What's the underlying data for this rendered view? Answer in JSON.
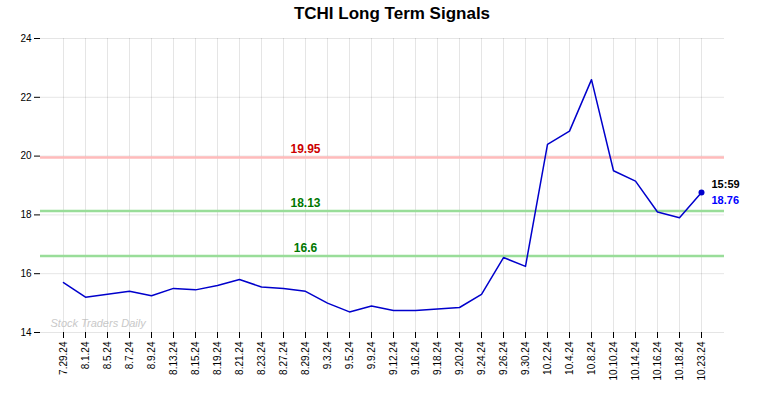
{
  "chart_data": {
    "type": "line",
    "title": "TCHI Long Term Signals",
    "categories": [
      "7.29.24",
      "8.1.24",
      "8.5.24",
      "8.7.24",
      "8.9.24",
      "8.13.24",
      "8.15.24",
      "8.19.24",
      "8.21.24",
      "8.23.24",
      "8.27.24",
      "8.29.24",
      "9.3.24",
      "9.5.24",
      "9.9.24",
      "9.12.24",
      "9.16.24",
      "9.18.24",
      "9.20.24",
      "9.24.24",
      "9.26.24",
      "9.30.24",
      "10.2.24",
      "10.4.24",
      "10.8.24",
      "10.10.24",
      "10.14.24",
      "10.16.24",
      "10.18.24",
      "10.23.24"
    ],
    "values": [
      15.7,
      15.2,
      15.3,
      15.4,
      15.25,
      15.5,
      15.45,
      15.6,
      15.8,
      15.55,
      15.5,
      15.4,
      15.0,
      14.7,
      14.9,
      14.75,
      14.75,
      14.8,
      14.85,
      15.3,
      16.55,
      16.25,
      20.4,
      20.85,
      22.6,
      19.5,
      19.15,
      18.1,
      17.9,
      18.76
    ],
    "color": "#0000cc",
    "hlines": [
      {
        "value": 19.95,
        "label": "19.95",
        "color": "#ffbbbb",
        "label_color": "#cc0000"
      },
      {
        "value": 18.13,
        "label": "18.13",
        "color": "#99dd99",
        "label_color": "#007700"
      },
      {
        "value": 16.6,
        "label": "16.6",
        "color": "#99dd99",
        "label_color": "#007700"
      }
    ],
    "annotations": [
      {
        "text": "15:59",
        "color": "#000000"
      },
      {
        "text": "18.76",
        "color": "#0000ff"
      }
    ],
    "watermark": {
      "text": "Stock Traders Daily",
      "color": "#bbbbbb"
    },
    "ylim": [
      14,
      24
    ],
    "yticks": [
      14,
      16,
      18,
      20,
      22,
      24
    ],
    "grid": true
  }
}
